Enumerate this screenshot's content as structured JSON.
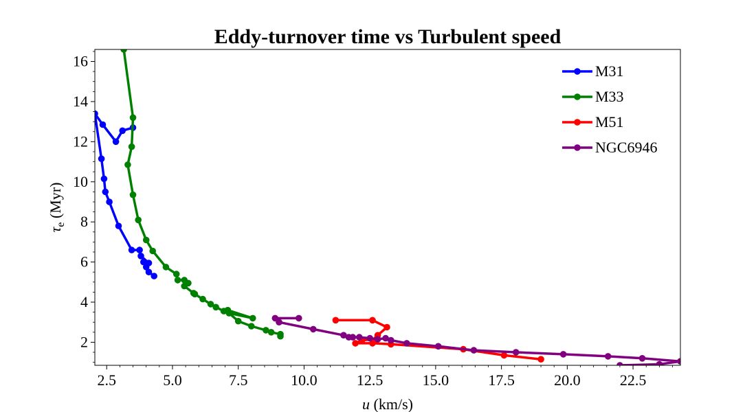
{
  "chart_data": {
    "type": "line",
    "title": "Eddy-turnover time vs Turbulent speed",
    "xlabel": "u (km/s)",
    "ylabel": "τe (Myr)",
    "xlim": [
      2.05,
      24.3
    ],
    "ylim": [
      0.85,
      16.6
    ],
    "xticks": [
      2.5,
      5.0,
      7.5,
      10.0,
      12.5,
      15.0,
      17.5,
      20.0,
      22.5
    ],
    "xtick_labels": [
      "2.5",
      "5.0",
      "7.5",
      "10.0",
      "12.5",
      "15.0",
      "17.5",
      "20.0",
      "22.5"
    ],
    "yticks": [
      2,
      4,
      6,
      8,
      10,
      12,
      14,
      16
    ],
    "ytick_labels": [
      "2",
      "4",
      "6",
      "8",
      "10",
      "12",
      "14",
      "16"
    ],
    "grid": false,
    "legend_position": "top-right",
    "series": [
      {
        "name": "M31",
        "color": "#0000ff",
        "x": [
          3.5,
          3.1,
          2.85,
          2.35,
          2.05,
          2.3,
          2.4,
          2.45,
          2.6,
          2.95,
          3.45,
          3.75,
          3.8,
          4.1,
          3.9,
          4.0,
          4.1,
          4.3
        ],
        "y": [
          12.7,
          12.55,
          12.0,
          12.85,
          13.4,
          11.15,
          10.15,
          9.5,
          9.0,
          7.8,
          6.6,
          6.6,
          6.3,
          5.95,
          6.0,
          5.75,
          5.5,
          5.3
        ]
      },
      {
        "name": "M33",
        "color": "#008000",
        "x": [
          3.15,
          3.5,
          3.45,
          3.3,
          3.5,
          3.7,
          4.0,
          4.25,
          4.75,
          5.15,
          5.2,
          5.45,
          5.6,
          5.45,
          5.8,
          5.85,
          6.15,
          6.45,
          6.65,
          6.95,
          7.1,
          8.05,
          7.15,
          7.5,
          8.0,
          8.55,
          8.75,
          9.1,
          9.1
        ],
        "y": [
          16.6,
          13.2,
          11.75,
          10.85,
          9.35,
          8.1,
          7.1,
          6.55,
          5.75,
          5.4,
          5.1,
          5.1,
          4.95,
          4.8,
          4.45,
          4.4,
          4.15,
          3.9,
          3.75,
          3.55,
          3.6,
          3.2,
          3.45,
          3.05,
          2.8,
          2.6,
          2.5,
          2.4,
          2.3
        ]
      },
      {
        "name": "M51",
        "color": "#ff0000",
        "x": [
          11.2,
          12.6,
          13.15,
          12.8,
          12.75,
          12.2,
          11.95,
          12.6,
          13.3,
          16.05,
          17.6,
          19.0
        ],
        "y": [
          3.1,
          3.1,
          2.75,
          2.35,
          2.15,
          2.1,
          1.95,
          1.95,
          1.9,
          1.65,
          1.35,
          1.15
        ]
      },
      {
        "name": "NGC6946",
        "color": "#800080",
        "x": [
          9.8,
          8.9,
          9.05,
          10.35,
          11.5,
          11.7,
          11.85,
          12.1,
          12.5,
          12.8,
          13.1,
          13.3,
          13.9,
          15.1,
          16.45,
          18.05,
          19.85,
          21.55,
          22.85,
          24.3,
          23.5,
          22.0
        ],
        "y": [
          3.2,
          3.2,
          3.0,
          2.65,
          2.35,
          2.25,
          2.25,
          2.25,
          2.2,
          2.15,
          2.2,
          2.1,
          1.95,
          1.8,
          1.6,
          1.5,
          1.4,
          1.3,
          1.2,
          1.05,
          0.9,
          0.85
        ]
      }
    ]
  }
}
